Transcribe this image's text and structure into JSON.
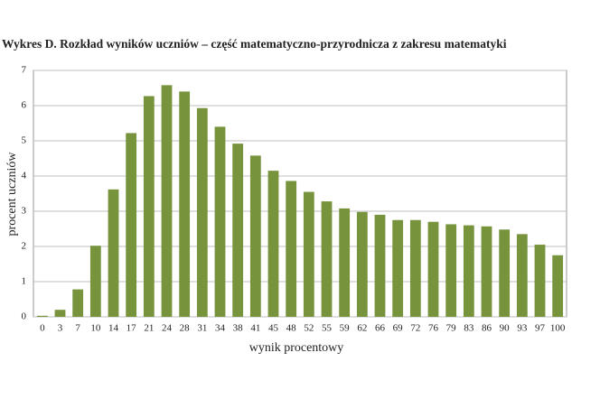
{
  "chart_data": {
    "type": "bar",
    "title": "Wykres D. Rozkład wyników uczniów – część matematyczno-przyrodnicza z zakresu matematyki",
    "x_label": "wynik procentowy",
    "y_label": "procent uczniów",
    "categories": [
      "0",
      "3",
      "7",
      "10",
      "14",
      "17",
      "21",
      "24",
      "28",
      "31",
      "34",
      "38",
      "41",
      "45",
      "48",
      "52",
      "55",
      "59",
      "62",
      "66",
      "69",
      "72",
      "76",
      "79",
      "83",
      "86",
      "90",
      "93",
      "97",
      "100"
    ],
    "values": [
      0.03,
      0.2,
      0.78,
      2.02,
      3.62,
      5.22,
      6.27,
      6.58,
      6.4,
      5.93,
      5.4,
      4.92,
      4.58,
      4.15,
      3.86,
      3.55,
      3.28,
      3.08,
      2.98,
      2.9,
      2.75,
      2.75,
      2.7,
      2.63,
      2.6,
      2.57,
      2.48,
      2.35,
      2.05,
      1.75
    ],
    "color": "#77933c",
    "ylim": [
      0,
      7
    ],
    "yticks": [
      0,
      1,
      2,
      3,
      4,
      5,
      6,
      7
    ],
    "grid": true
  }
}
